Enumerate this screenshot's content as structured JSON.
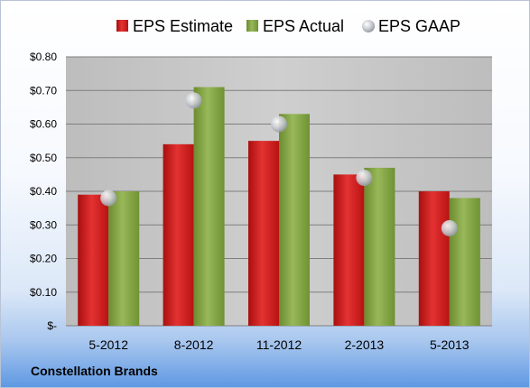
{
  "company": "Constellation Brands",
  "chart_data": {
    "type": "bar",
    "categories": [
      "5-2012",
      "8-2012",
      "11-2012",
      "2-2013",
      "5-2013"
    ],
    "series": [
      {
        "name": "EPS Estimate",
        "kind": "bar",
        "color": "#cc1414",
        "values": [
          0.39,
          0.54,
          0.55,
          0.45,
          0.4
        ]
      },
      {
        "name": "EPS Actual",
        "kind": "bar",
        "color": "#7fa23f",
        "values": [
          0.4,
          0.71,
          0.63,
          0.47,
          0.38
        ]
      },
      {
        "name": "EPS GAAP",
        "kind": "marker",
        "color": "#c7cad0",
        "values": [
          0.38,
          0.67,
          0.6,
          0.44,
          0.29
        ]
      }
    ],
    "yticks": [
      0,
      0.1,
      0.2,
      0.3,
      0.4,
      0.5,
      0.6,
      0.7,
      0.8
    ],
    "ytick_labels": [
      "$-",
      "$0.10",
      "$0.20",
      "$0.30",
      "$0.40",
      "$0.50",
      "$0.60",
      "$0.70",
      "$0.80"
    ],
    "ylim": [
      0,
      0.8
    ],
    "grid": true,
    "legend_position": "top"
  }
}
